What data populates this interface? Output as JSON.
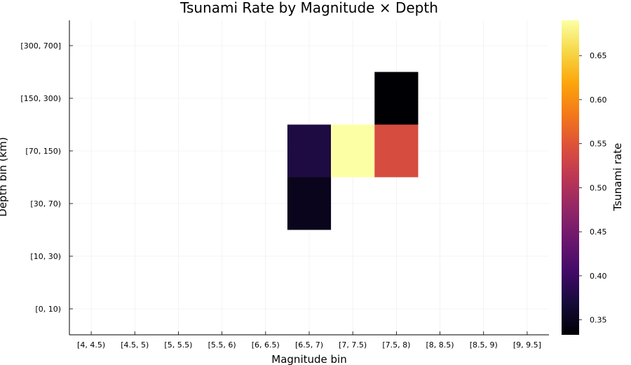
{
  "chart_data": {
    "type": "heatmap",
    "title": "Tsunami Rate by Magnitude × Depth",
    "xlabel": "Magnitude bin",
    "ylabel": "Depth bin (km)",
    "x_categories": [
      "[4, 4.5)",
      "[4.5, 5)",
      "[5, 5.5)",
      "[5.5, 6)",
      "[6, 6.5)",
      "[6.5, 7)",
      "[7, 7.5)",
      "[7.5, 8)",
      "[8, 8.5)",
      "[8.5, 9)",
      "[9, 9.5]"
    ],
    "y_categories": [
      "[0, 10)",
      "[10, 30)",
      "[30, 70)",
      "[70, 150)",
      "[150, 300)",
      "[300, 700]"
    ],
    "cells": [
      {
        "x": "[6.5, 7)",
        "y": "[30, 70)",
        "value": 0.35
      },
      {
        "x": "[6.5, 7)",
        "y": "[70, 150)",
        "value": 0.375
      },
      {
        "x": "[7, 7.5)",
        "y": "[70, 150)",
        "value": 0.69
      },
      {
        "x": "[7.5, 8)",
        "y": "[70, 150)",
        "value": 0.54
      },
      {
        "x": "[7.5, 8)",
        "y": "[150, 300)",
        "value": 0.333
      }
    ],
    "colorbar": {
      "label": "Tsunami rate",
      "min": 0.333,
      "max": 0.69,
      "ticks": [
        "0.35",
        "0.40",
        "0.45",
        "0.50",
        "0.55",
        "0.60",
        "0.65"
      ],
      "colormap": "inferno"
    },
    "grid": true
  }
}
